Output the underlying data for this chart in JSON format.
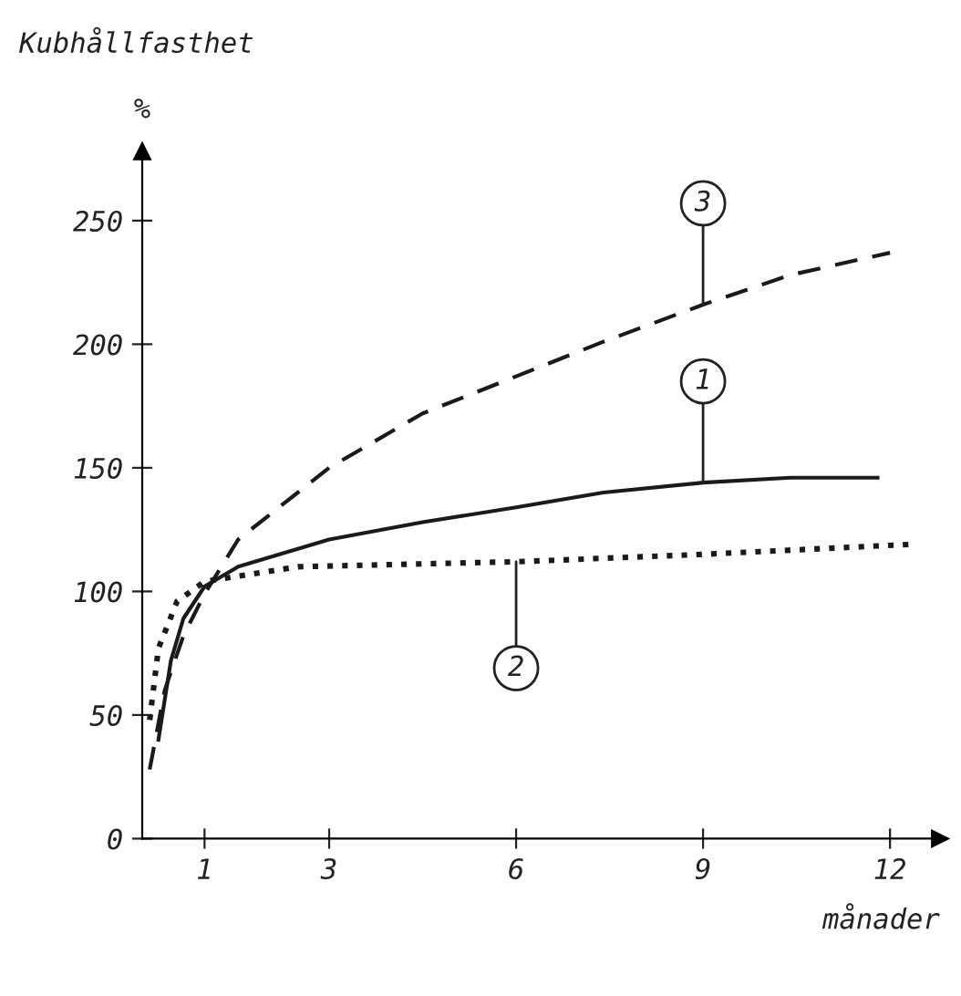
{
  "chart_data": {
    "type": "line",
    "title": "Kubhållfasthet",
    "ylabel": "%",
    "xlabel": "månader",
    "xlim": [
      0,
      12.8
    ],
    "ylim": [
      0,
      278
    ],
    "xticks": [
      1,
      3,
      6,
      9,
      12
    ],
    "yticks": [
      0,
      50,
      100,
      150,
      200,
      250
    ],
    "grid": false,
    "legend": false,
    "series": [
      {
        "name": "1",
        "color": "#1a1a1a",
        "line_style": "solid",
        "x": [
          0.26,
          0.46,
          0.66,
          1,
          1.54,
          3,
          4.5,
          6,
          7.4,
          9,
          10.4,
          11.8
        ],
        "values": [
          40,
          72,
          89,
          102,
          110,
          121,
          128,
          134,
          140,
          144,
          146,
          146
        ]
      },
      {
        "name": "2",
        "color": "#1a1a1a",
        "line_style": "dotted",
        "x": [
          0.12,
          0.26,
          0.56,
          1,
          2.5,
          6,
          9,
          12.3
        ],
        "values": [
          48,
          77,
          96,
          104,
          110,
          112,
          115,
          119
        ]
      },
      {
        "name": "3",
        "color": "#1a1a1a",
        "line_style": "dashed",
        "x": [
          0.12,
          0.36,
          0.66,
          1,
          1.54,
          3,
          4.5,
          6,
          7.4,
          9,
          10.4,
          12
        ],
        "values": [
          28,
          60,
          82,
          99,
          121,
          150,
          172,
          187,
          201,
          216,
          228,
          237
        ]
      }
    ]
  }
}
